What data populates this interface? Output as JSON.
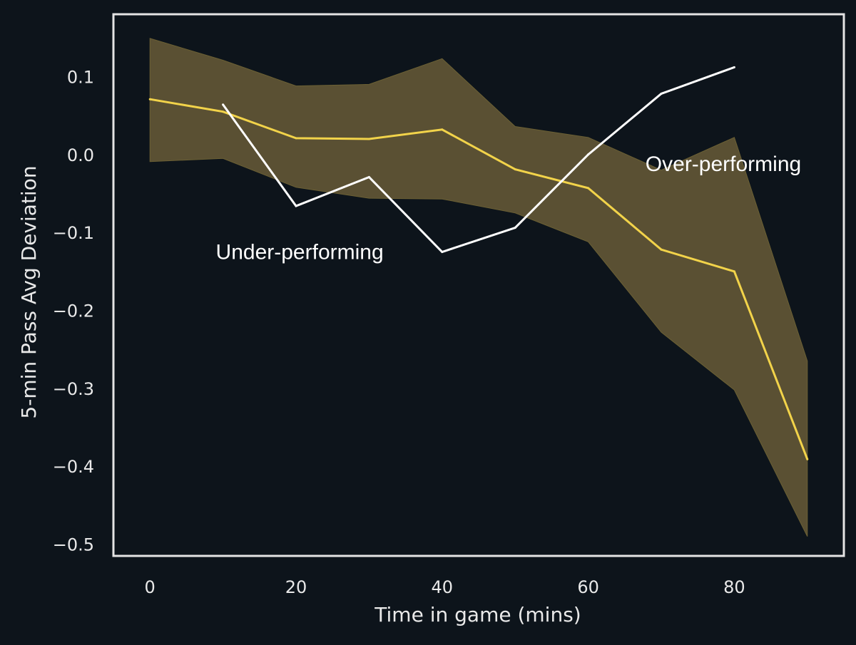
{
  "chart_data": {
    "type": "line",
    "title": "",
    "xlabel": "Time in game (mins)",
    "ylabel": "5-min Pass Avg Deviation",
    "xlim": [
      -5,
      95
    ],
    "ylim": [
      -0.515,
      0.18
    ],
    "xticks": [
      0,
      20,
      40,
      60,
      80
    ],
    "xtick_labels": [
      "0",
      "20",
      "40",
      "60",
      "80"
    ],
    "yticks": [
      0.1,
      0.0,
      -0.1,
      -0.2,
      -0.3,
      -0.4,
      -0.5
    ],
    "ytick_labels": [
      "0.1",
      "0.0",
      "−0.1",
      "−0.2",
      "−0.3",
      "−0.4",
      "−0.5"
    ],
    "grid": false,
    "legend": "none",
    "band": {
      "x": [
        0,
        10,
        20,
        30,
        40,
        50,
        60,
        70,
        80,
        90
      ],
      "upper": [
        0.149,
        0.121,
        0.088,
        0.09,
        0.123,
        0.036,
        0.022,
        -0.02,
        0.022,
        -0.265
      ],
      "lower": [
        -0.009,
        -0.005,
        -0.042,
        -0.056,
        -0.057,
        -0.075,
        -0.112,
        -0.228,
        -0.302,
        -0.49
      ],
      "color": "#5a5033"
    },
    "series": [
      {
        "x": [
          0,
          10,
          20,
          30,
          40,
          50,
          60,
          70,
          80,
          90
        ],
        "values": [
          0.071,
          0.055,
          0.021,
          0.02,
          0.032,
          -0.019,
          -0.043,
          -0.122,
          -0.15,
          -0.391
        ],
        "color": "#f2d34a"
      },
      {
        "x": [
          10,
          20,
          30,
          40,
          50,
          60,
          70,
          80
        ],
        "values": [
          0.064,
          -0.066,
          -0.029,
          -0.125,
          -0.094,
          0.0,
          0.078,
          0.112
        ],
        "color": "#ffffff"
      }
    ],
    "annotations": [
      {
        "text": "Under-performing",
        "x": 20.5,
        "y": -0.125
      },
      {
        "text": "Over-performing",
        "x": 78.5,
        "y": -0.012
      }
    ],
    "colors": {
      "background": "#0d141b",
      "frame": "#e4e4e4",
      "text": "#e9e9e9"
    }
  }
}
